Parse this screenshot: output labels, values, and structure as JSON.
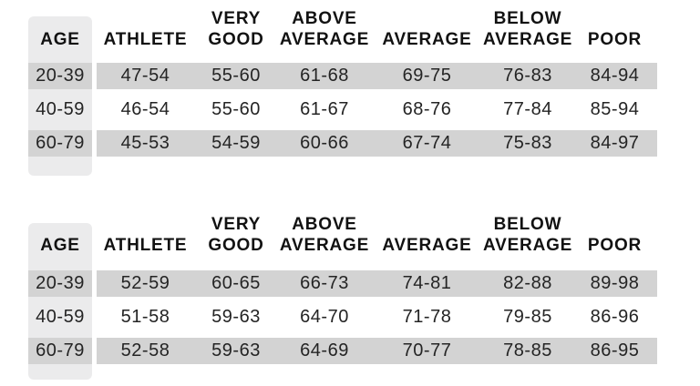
{
  "colors": {
    "background": "#ffffff",
    "row_stripe": "#d3d3d3",
    "age_column_band": "#ebebec",
    "header_text": "#121212",
    "value_text": "#242424"
  },
  "chart_data": [
    {
      "type": "table",
      "columns": [
        "AGE",
        "ATHLETE",
        "VERY GOOD",
        "ABOVE AVERAGE",
        "AVERAGE",
        "BELOW AVERAGE",
        "POOR"
      ],
      "header_display": [
        "AGE",
        "ATHLETE",
        "VERY\nGOOD",
        "ABOVE\nAVERAGE",
        "AVERAGE",
        "BELOW\nAVERAGE",
        "POOR"
      ],
      "rows": [
        [
          "20-39",
          "47-54",
          "55-60",
          "61-68",
          "69-75",
          "76-83",
          "84-94"
        ],
        [
          "40-59",
          "46-54",
          "55-60",
          "61-67",
          "68-76",
          "77-84",
          "85-94"
        ],
        [
          "60-79",
          "45-53",
          "54-59",
          "60-66",
          "67-74",
          "75-83",
          "84-97"
        ]
      ]
    },
    {
      "type": "table",
      "columns": [
        "AGE",
        "ATHLETE",
        "VERY GOOD",
        "ABOVE AVERAGE",
        "AVERAGE",
        "BELOW AVERAGE",
        "POOR"
      ],
      "header_display": [
        "AGE",
        "ATHLETE",
        "VERY\nGOOD",
        "ABOVE\nAVERAGE",
        "AVERAGE",
        "BELOW\nAVERAGE",
        "POOR"
      ],
      "rows": [
        [
          "20-39",
          "52-59",
          "60-65",
          "66-73",
          "74-81",
          "82-88",
          "89-98"
        ],
        [
          "40-59",
          "51-58",
          "59-63",
          "64-70",
          "71-78",
          "79-85",
          "86-96"
        ],
        [
          "60-79",
          "52-58",
          "59-63",
          "64-69",
          "70-77",
          "78-85",
          "86-95"
        ]
      ]
    }
  ]
}
